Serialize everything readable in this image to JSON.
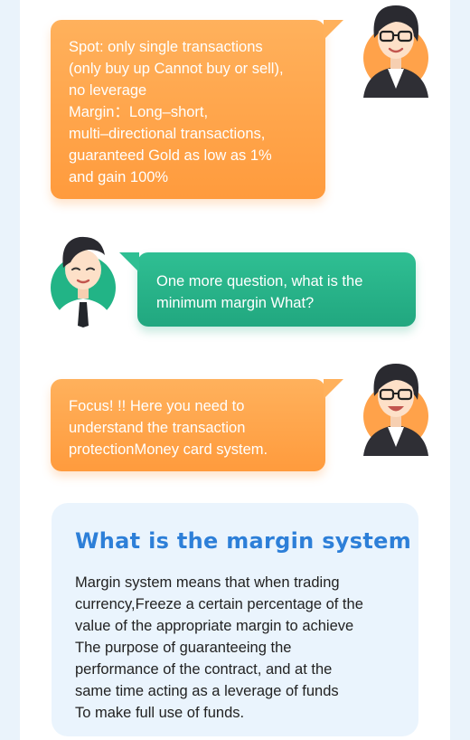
{
  "messages": [
    {
      "speaker": "woman",
      "lines": [
        "Spot: only single transactions",
        "(only buy up Cannot buy or sell),",
        "no leverage",
        "Margin：Long–short,",
        "multi–directional transactions,",
        "guaranteed Gold as low as 1%",
        "and gain 100%"
      ]
    },
    {
      "speaker": "man",
      "lines": [
        "One more question, what is the",
        "minimum margin What?"
      ]
    },
    {
      "speaker": "woman",
      "lines": [
        "Focus! !! Here you need to",
        "understand the transaction",
        "protectionMoney card system."
      ]
    }
  ],
  "card": {
    "title": "What is the margin system",
    "body_lines": [
      "Margin system means that when trading",
      "currency,Freeze a certain percentage of the",
      "value of the appropriate margin to achieve",
      "The purpose of guaranteeing the",
      "performance of the contract, and at the",
      "same time acting as a leverage of funds",
      "To make full use of funds."
    ]
  },
  "colors": {
    "orange_bubble": "#ff9b3d",
    "green_bubble": "#21a77f",
    "card_background": "#eaf4fd",
    "card_title": "#2d7fd8",
    "page_background": "#eaf3fb"
  },
  "icons": {
    "woman": "woman-avatar-icon",
    "man": "man-avatar-icon"
  }
}
